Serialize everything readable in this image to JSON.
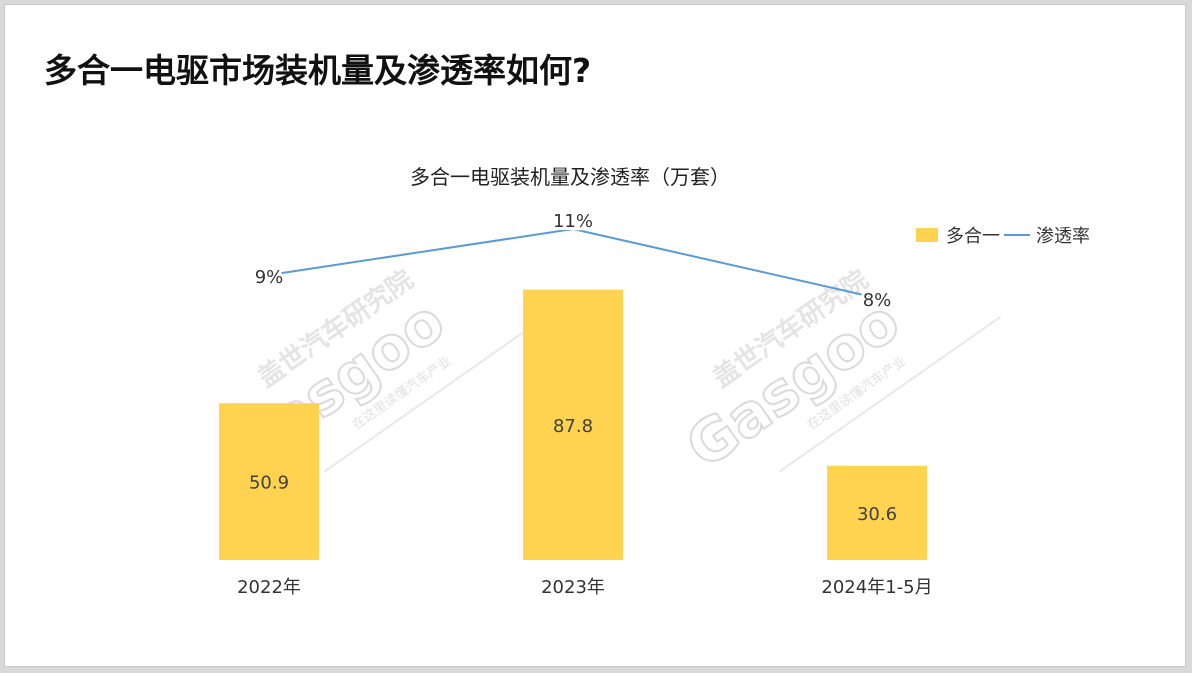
{
  "page_title": "多合一电驱市场装机量及渗透率如何?",
  "colors": {
    "bar": "#FFD24F",
    "line": "#5B9BD5",
    "watermark": "#bfbfbf"
  },
  "watermark": {
    "brand_cn": "盖世汽车研究院",
    "brand_en": "Gasgoo",
    "tagline": "在这里读懂汽车产业"
  },
  "chart_data": {
    "type": "bar",
    "title": "多合一电驱装机量及渗透率（万套）",
    "categories": [
      "2022年",
      "2023年",
      "2024年1-5月"
    ],
    "series": [
      {
        "name": "多合一",
        "type": "bar",
        "values": [
          50.9,
          87.8,
          30.6
        ],
        "labels": [
          "50.9",
          "87.8",
          "30.6"
        ]
      },
      {
        "name": "渗透率",
        "type": "line",
        "values": [
          9,
          11,
          8
        ],
        "labels": [
          "9%",
          "11%",
          "8%"
        ]
      }
    ],
    "ylim": [
      0,
      88
    ],
    "rate_ylim": [
      0,
      100
    ],
    "legend_position": "top-right",
    "grid": false
  }
}
